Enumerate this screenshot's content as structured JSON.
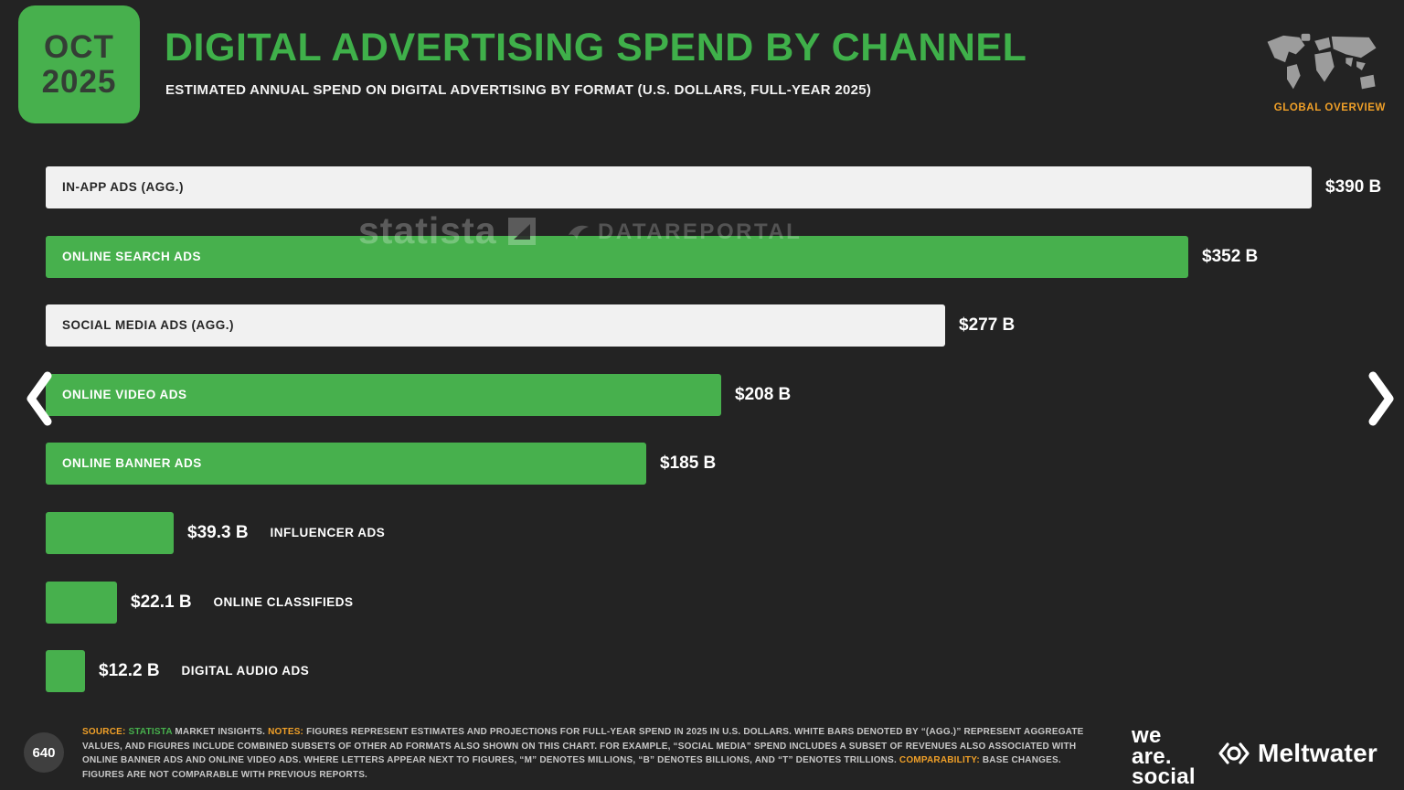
{
  "colors": {
    "background": "#232323",
    "green": "#47b04d",
    "bar_white": "#f1f1f1",
    "orange": "#f0a028",
    "text_light": "#ffffff",
    "text_dark": "#262626",
    "footer_text": "#c8c8c8"
  },
  "header": {
    "date_line1": "OCT",
    "date_line2": "2025",
    "title": "DIGITAL ADVERTISING SPEND BY CHANNEL",
    "subtitle": "ESTIMATED ANNUAL SPEND ON DIGITAL ADVERTISING BY FORMAT (U.S. DOLLARS, FULL-YEAR 2025)",
    "region_label": "GLOBAL OVERVIEW"
  },
  "watermarks": {
    "statista": "statista",
    "datareportal": "DATAREPORTAL"
  },
  "chart_data": {
    "type": "bar",
    "orientation": "horizontal",
    "title": "DIGITAL ADVERTISING SPEND BY CHANNEL",
    "unit": "U.S. dollars, billions, full-year 2025",
    "xlim": [
      0,
      400
    ],
    "categories": [
      "IN-APP ADS (AGG.)",
      "ONLINE SEARCH ADS",
      "SOCIAL MEDIA ADS (AGG.)",
      "ONLINE VIDEO ADS",
      "ONLINE BANNER ADS",
      "INFLUENCER ADS",
      "ONLINE CLASSIFIEDS",
      "DIGITAL AUDIO ADS"
    ],
    "values": [
      390,
      352,
      277,
      208,
      185,
      39.3,
      22.1,
      12.2
    ],
    "value_labels": [
      "$390 B",
      "$352 B",
      "$277 B",
      "$208 B",
      "$185 B",
      "$39.3 B",
      "$22.1 B",
      "$12.2 B"
    ],
    "bar_styles": [
      "white",
      "green",
      "white",
      "green",
      "green",
      "green",
      "green",
      "green"
    ],
    "label_position": [
      "inside",
      "inside",
      "inside",
      "inside",
      "inside",
      "outside",
      "outside",
      "outside"
    ],
    "legend": "white bars = aggregate values"
  },
  "pagination": {
    "page_number": "640"
  },
  "footer": {
    "segments": [
      {
        "text": "SOURCE:",
        "style": "orange"
      },
      {
        "text": " ",
        "style": "plain"
      },
      {
        "text": "STATISTA",
        "style": "green"
      },
      {
        "text": " MARKET INSIGHTS. ",
        "style": "plain"
      },
      {
        "text": "NOTES:",
        "style": "orange"
      },
      {
        "text": " FIGURES REPRESENT ESTIMATES AND PROJECTIONS FOR FULL-YEAR SPEND IN 2025 IN U.S. DOLLARS. WHITE BARS DENOTED BY “(AGG.)” REPRESENT AGGREGATE VALUES, AND FIGURES INCLUDE COMBINED SUBSETS OF OTHER AD FORMATS ALSO SHOWN ON THIS CHART. FOR EXAMPLE, “SOCIAL MEDIA” SPEND INCLUDES A SUBSET OF REVENUES ALSO ASSOCIATED WITH ONLINE BANNER ADS AND ONLINE VIDEO ADS. WHERE LETTERS APPEAR NEXT TO FIGURES, “M” DENOTES MILLIONS, “B” DENOTES BILLIONS, AND “T” DENOTES TRILLIONS. ",
        "style": "plain"
      },
      {
        "text": "COMPARABILITY:",
        "style": "orange"
      },
      {
        "text": " BASE CHANGES. FIGURES ARE NOT COMPARABLE WITH PREVIOUS REPORTS.",
        "style": "plain"
      }
    ]
  },
  "branding": {
    "we_are_social_lines": [
      "we",
      "are.",
      "social"
    ],
    "meltwater": "Meltwater"
  }
}
